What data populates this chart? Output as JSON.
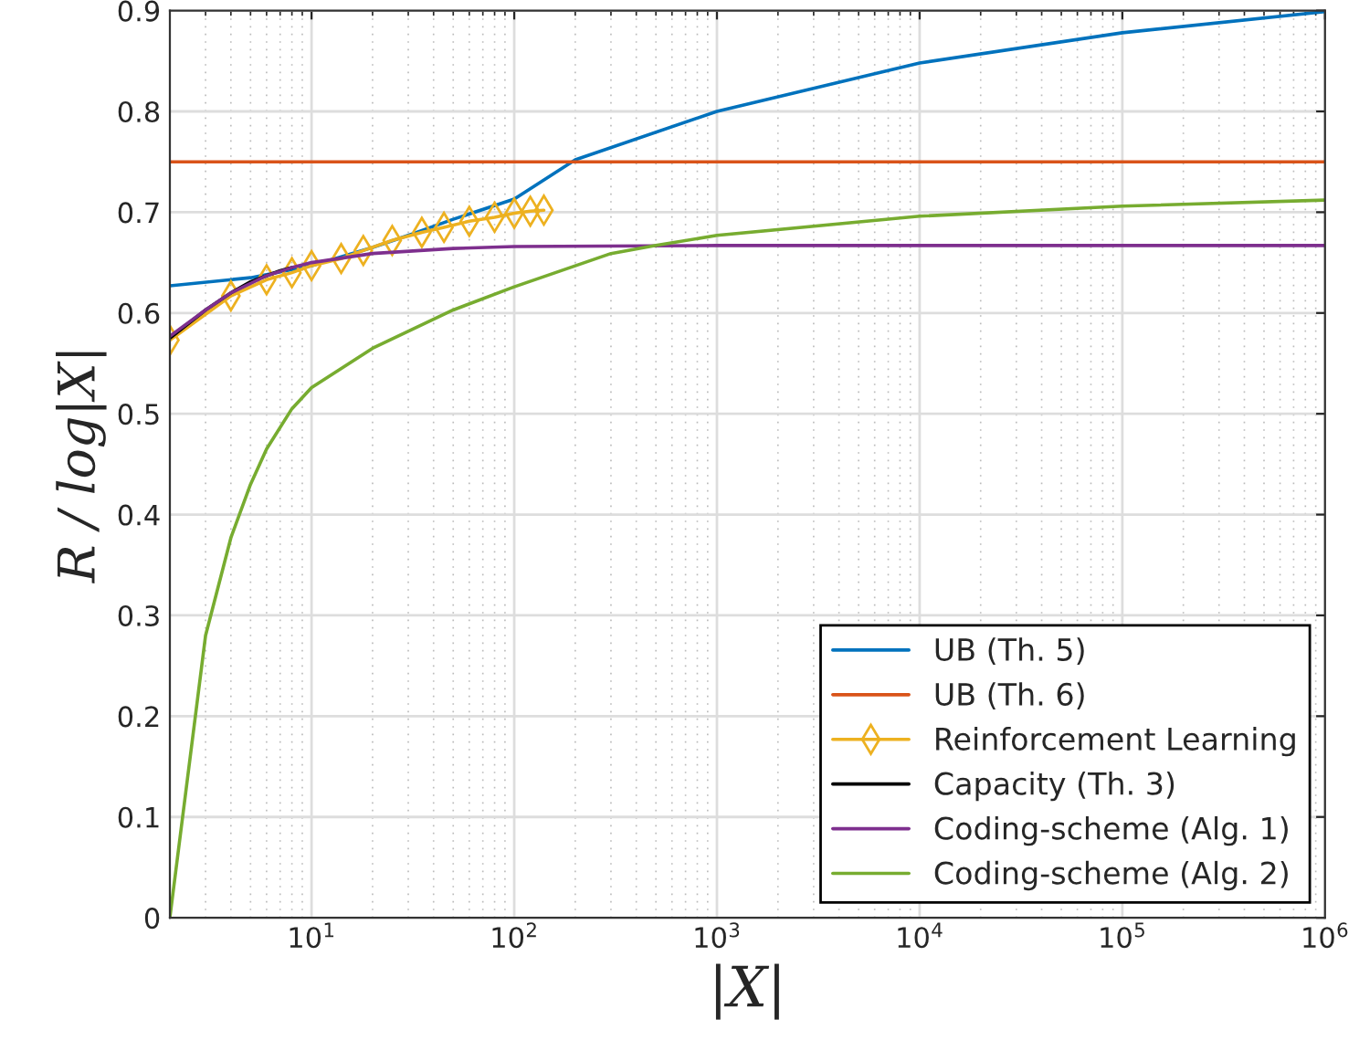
{
  "chart_data": {
    "type": "line",
    "xlabel": "|X|",
    "ylabel": "R / log|X|",
    "log": "x",
    "xlim": [
      2,
      1000000
    ],
    "ylim": [
      0,
      0.9
    ],
    "xticks": [
      {
        "value": 10,
        "label": "10$^{1}$"
      },
      {
        "value": 100,
        "label": "10$^{2}$"
      },
      {
        "value": 1000,
        "label": "10$^{3}$"
      },
      {
        "value": 10000,
        "label": "10$^{4}$"
      },
      {
        "value": 100000,
        "label": "10$^{5}$"
      },
      {
        "value": 1000000,
        "label": "10$^{6}$"
      }
    ],
    "yticks": [
      0,
      0.1,
      0.2,
      0.3,
      0.4,
      0.5,
      0.6,
      0.7,
      0.8,
      0.9
    ],
    "grid": true,
    "legend": "bottom right",
    "marker": "none",
    "line_style": "solid",
    "series": [
      {
        "name": "UB (Th. 5)",
        "color": "#0072bd",
        "x": [
          2,
          5,
          10,
          20,
          30,
          50,
          100,
          200,
          1000,
          10000,
          100000,
          1000000
        ],
        "values": [
          0.627,
          0.635,
          0.647,
          0.665,
          0.677,
          0.693,
          0.713,
          0.752,
          0.8,
          0.848,
          0.878,
          0.899
        ]
      },
      {
        "name": "UB (Th. 6)",
        "color": "#d95319",
        "x": [
          2,
          1000000
        ],
        "values": [
          0.75,
          0.75
        ]
      },
      {
        "name": "Reinforcement Learning",
        "color": "#edb120",
        "marker": "diamond",
        "x": [
          2,
          4,
          6,
          8,
          10,
          14,
          18,
          25,
          35,
          45,
          60,
          80,
          100,
          120,
          140
        ],
        "values": [
          0.573,
          0.617,
          0.633,
          0.64,
          0.647,
          0.654,
          0.662,
          0.672,
          0.68,
          0.685,
          0.691,
          0.695,
          0.699,
          0.701,
          0.702
        ]
      },
      {
        "name": "Capacity (Th. 3)",
        "color": "#000000",
        "x": [
          2,
          3,
          4,
          5,
          6,
          7,
          8
        ],
        "values": [
          0.575,
          0.603,
          0.62,
          0.631,
          0.637,
          0.642,
          0.645
        ]
      },
      {
        "name": "Coding-scheme (Alg. 1)",
        "color": "#7e2f8e",
        "x": [
          2,
          3,
          4,
          6,
          8,
          10,
          20,
          50,
          100,
          1000,
          1000000
        ],
        "values": [
          0.577,
          0.603,
          0.62,
          0.637,
          0.645,
          0.65,
          0.659,
          0.664,
          0.666,
          0.667,
          0.667
        ]
      },
      {
        "name": "Coding-scheme (Alg. 2)",
        "color": "#77ac30",
        "x": [
          2,
          3,
          4,
          5,
          6,
          8,
          10,
          20,
          50,
          100,
          300,
          500,
          1000,
          10000,
          100000,
          1000000
        ],
        "values": [
          0,
          0.28,
          0.377,
          0.43,
          0.465,
          0.505,
          0.526,
          0.565,
          0.603,
          0.626,
          0.659,
          0.667,
          0.677,
          0.696,
          0.706,
          0.712
        ]
      }
    ]
  }
}
